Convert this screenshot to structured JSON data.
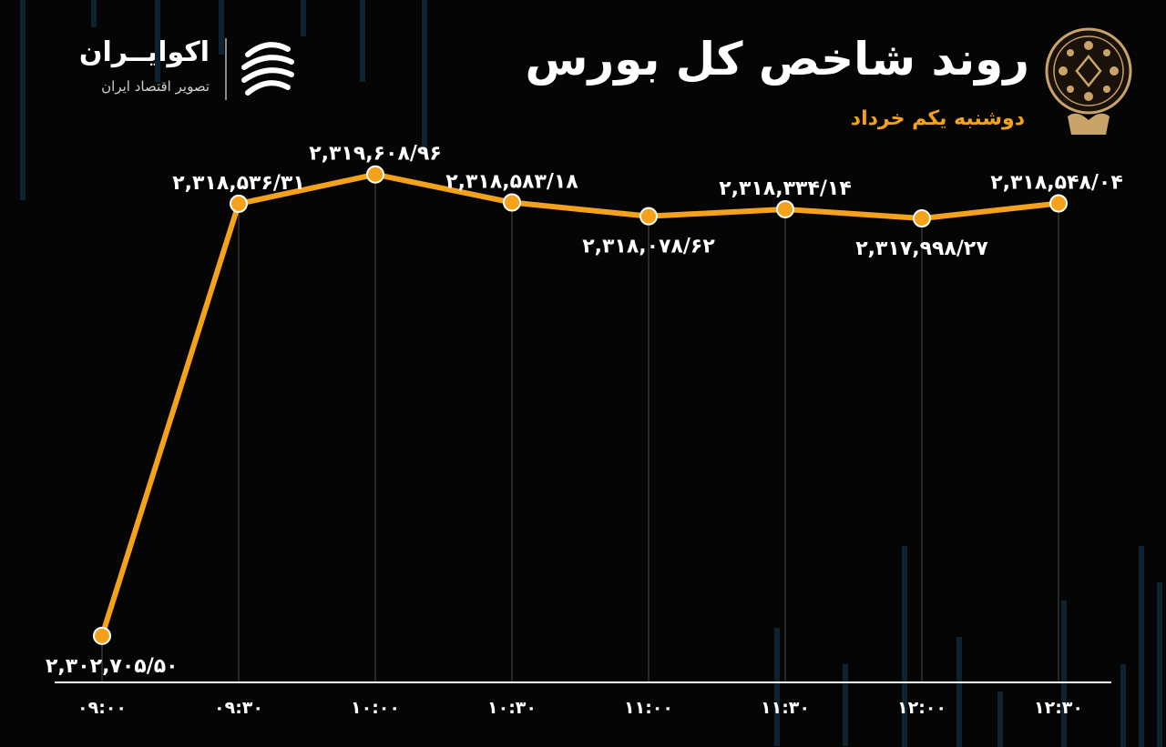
{
  "header": {
    "title": "روند شاخص کل بورس",
    "subtitle": "دوشنبه یکم خرداد"
  },
  "brand": {
    "name": "اکوایــران",
    "tagline": "تصویر اقتصاد ایران",
    "logo_icon": "ecoiran-logo-icon",
    "emblem_icon": "tehran-stock-exchange-emblem-icon"
  },
  "colors": {
    "background": "#050505",
    "line": "#f4a21c",
    "text": "#ffffff",
    "accent": "#f4a21c"
  },
  "chart_data": {
    "type": "line",
    "categories": [
      "۰۹:۰۰",
      "۰۹:۳۰",
      "۱۰:۰۰",
      "۱۰:۳۰",
      "۱۱:۰۰",
      "۱۱:۳۰",
      "۱۲:۰۰",
      "۱۲:۳۰"
    ],
    "values": [
      2302705.5,
      2318536.31,
      2319608.96,
      2318583.18,
      2318078.62,
      2318334.14,
      2317998.27,
      2318548.04
    ],
    "data_labels": [
      "۲,۳۰۲,۷۰۵/۵۰",
      "۲,۳۱۸,۵۳۶/۳۱",
      "۲,۳۱۹,۶۰۸/۹۶",
      "۲,۳۱۸,۵۸۳/۱۸",
      "۲,۳۱۸,۰۷۸/۶۲",
      "۲,۳۱۸,۳۳۴/۱۴",
      "۲,۳۱۷,۹۹۸/۲۷",
      "۲,۳۱۸,۵۴۸/۰۴"
    ],
    "label_positions": [
      "below",
      "above",
      "above",
      "above",
      "below",
      "above",
      "below",
      "above"
    ],
    "title": "روند شاخص کل بورس",
    "xlabel": "",
    "ylabel": "",
    "ylim": [
      2301000,
      2321000
    ],
    "grid": "vertical"
  }
}
